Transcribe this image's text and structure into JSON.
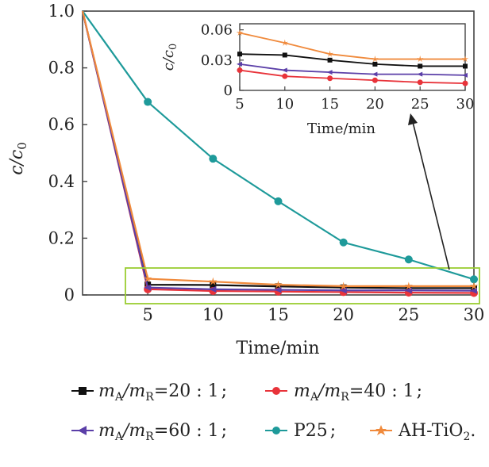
{
  "chart_data": [
    {
      "type": "line",
      "xlabel": "Time/min",
      "ylabel": "c/c0",
      "ylabel_main": "c/c",
      "ylabel_sub": "0",
      "xlim": [
        0,
        30
      ],
      "ylim": [
        0,
        1.0
      ],
      "x_ticks": [
        5,
        10,
        15,
        20,
        25,
        30
      ],
      "x_tick_labels": [
        "5",
        "10",
        "15",
        "20",
        "25",
        "30"
      ],
      "y_ticks": [
        0,
        0.2,
        0.4,
        0.6,
        0.8,
        1.0
      ],
      "y_tick_labels": [
        "0",
        "0.2",
        "0.4",
        "0.6",
        "0.8",
        "1.0"
      ],
      "x": [
        0,
        5,
        10,
        15,
        20,
        25,
        30
      ],
      "series": [
        {
          "name": "mA/mR = 20 : 1",
          "color": "#111111",
          "marker": "square",
          "values": [
            1.0,
            0.036,
            0.035,
            0.03,
            0.026,
            0.024,
            0.024
          ]
        },
        {
          "name": "mA/mR = 40 : 1",
          "color": "#e8333a",
          "marker": "circle",
          "values": [
            1.0,
            0.02,
            0.014,
            0.012,
            0.01,
            0.008,
            0.007
          ]
        },
        {
          "name": "mA/mR = 60 : 1",
          "color": "#5b3fa8",
          "marker": "triangle-left",
          "values": [
            1.0,
            0.026,
            0.02,
            0.018,
            0.016,
            0.016,
            0.015
          ]
        },
        {
          "name": "P25",
          "color": "#1e9a9a",
          "marker": "circle",
          "values": [
            1.0,
            0.68,
            0.48,
            0.33,
            0.185,
            0.125,
            0.055
          ]
        },
        {
          "name": "AH-TiO2",
          "color": "#f08a3c",
          "marker": "star",
          "values": [
            1.0,
            0.057,
            0.047,
            0.036,
            0.031,
            0.031,
            0.031
          ]
        }
      ],
      "highlight_box_color": "#9acd32"
    },
    {
      "type": "line",
      "role": "inset",
      "xlabel": "Time/min",
      "ylabel": "c/c0",
      "ylabel_main": "c/c",
      "ylabel_sub": "0",
      "xlim": [
        5,
        30
      ],
      "ylim": [
        0,
        0.066
      ],
      "x_ticks": [
        5,
        10,
        15,
        20,
        25,
        30
      ],
      "x_tick_labels": [
        "5",
        "10",
        "15",
        "20",
        "25",
        "30"
      ],
      "y_ticks": [
        0,
        0.03,
        0.06
      ],
      "y_tick_labels": [
        "0",
        "0.03",
        "0.06"
      ],
      "x": [
        5,
        10,
        15,
        20,
        25,
        30
      ],
      "series": [
        {
          "color": "#111111",
          "marker": "square",
          "values": [
            0.036,
            0.035,
            0.03,
            0.026,
            0.024,
            0.024
          ]
        },
        {
          "color": "#e8333a",
          "marker": "circle",
          "values": [
            0.02,
            0.014,
            0.012,
            0.01,
            0.008,
            0.007
          ]
        },
        {
          "color": "#5b3fa8",
          "marker": "triangle-left",
          "values": [
            0.026,
            0.02,
            0.018,
            0.016,
            0.016,
            0.015
          ]
        },
        {
          "color": "#f08a3c",
          "marker": "star",
          "values": [
            0.057,
            0.047,
            0.036,
            0.031,
            0.031,
            0.031
          ]
        }
      ]
    }
  ],
  "legend": {
    "items": [
      {
        "m": "m",
        "a": "A",
        "slash": "/",
        "m2": "m",
        "r": "R",
        "ratio": "=20 : 1",
        "sep": ";"
      },
      {
        "m": "m",
        "a": "A",
        "slash": "/",
        "m2": "m",
        "r": "R",
        "ratio": "=40 : 1",
        "sep": ";"
      },
      {
        "m": "m",
        "a": "A",
        "slash": "/",
        "m2": "m",
        "r": "R",
        "ratio": "=60 : 1",
        "sep": ";"
      },
      {
        "label": "P25",
        "sep": ";"
      },
      {
        "label": "AH-TiO",
        "sub": "2",
        "sep": "."
      }
    ]
  }
}
